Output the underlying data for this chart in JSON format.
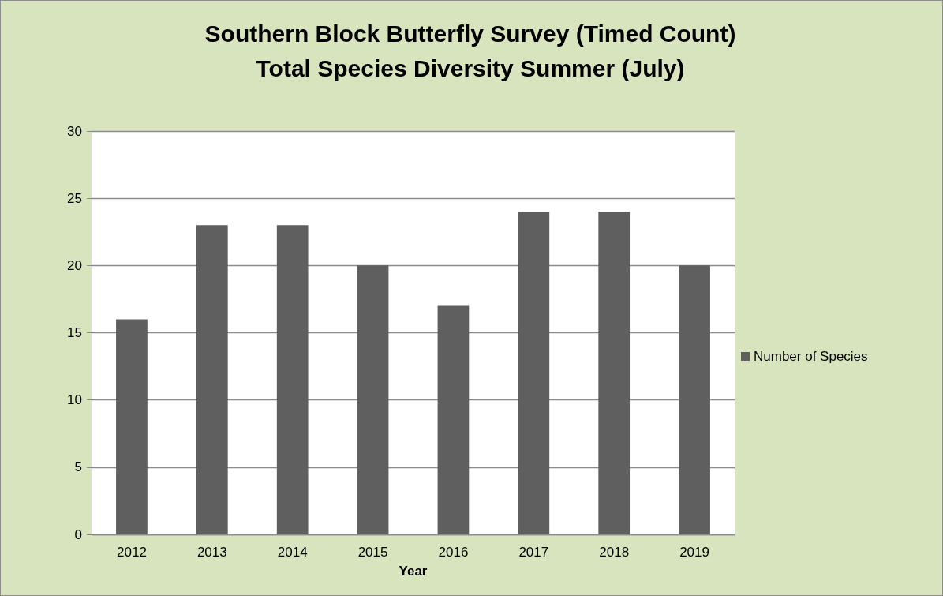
{
  "chart_data": {
    "type": "bar",
    "title": "Southern Block Butterfly Survey (Timed Count)\nTotal Species Diversity Summer (July)",
    "xlabel": "Year",
    "categories": [
      "2012",
      "2013",
      "2014",
      "2015",
      "2016",
      "2017",
      "2018",
      "2019"
    ],
    "series": [
      {
        "name": "Number of Species",
        "color": "#5f5f5f",
        "values": [
          16,
          23,
          23,
          20,
          17,
          24,
          24,
          20
        ]
      }
    ],
    "ylim": [
      0,
      30
    ],
    "yticks": [
      0,
      5,
      10,
      15,
      20,
      25,
      30
    ],
    "grid": "y",
    "legend": "right"
  }
}
